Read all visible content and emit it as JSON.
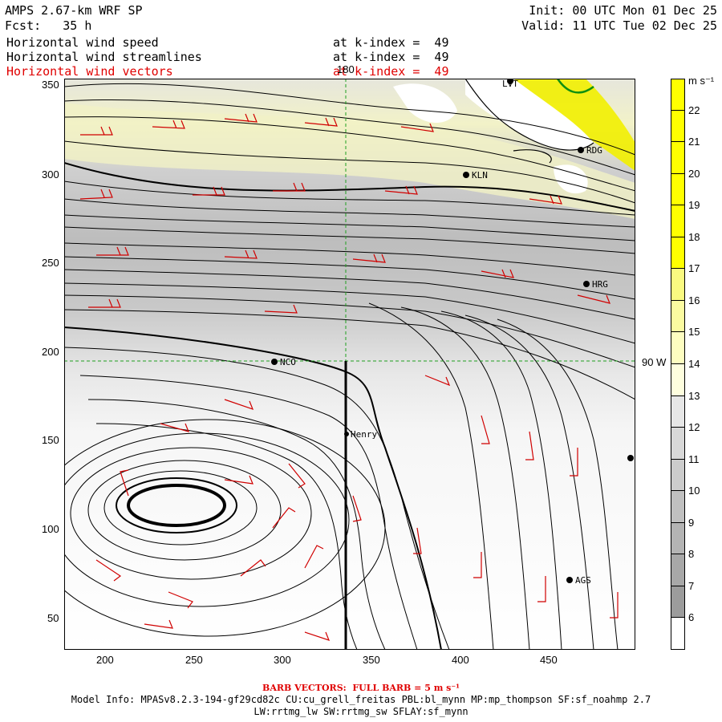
{
  "header": {
    "model": "AMPS 2.67-km WRF SP",
    "forecast": "Fcst:   35 h",
    "init": "Init: 00 UTC Mon 01 Dec 25",
    "valid": "Valid: 11 UTC Tue 02 Dec 25",
    "fields": [
      {
        "label": "Horizontal wind speed",
        "level": "at k-index =  49",
        "color": "#000000"
      },
      {
        "label": "Horizontal wind streamlines",
        "level": "at k-index =  49",
        "color": "#000000"
      },
      {
        "label": "Horizontal wind vectors",
        "level": "at k-index =  49",
        "color": "#e00000"
      }
    ]
  },
  "map": {
    "x_ticks": [
      "200",
      "250",
      "300",
      "350",
      "400",
      "450"
    ],
    "y_ticks": [
      "350",
      "300",
      "250",
      "200",
      "150",
      "100",
      "50"
    ],
    "meridian_label": "180",
    "parallel_label": "90 W",
    "stations": [
      {
        "name": "LVT"
      },
      {
        "name": "RDG"
      },
      {
        "name": "KLN"
      },
      {
        "name": "HRG"
      },
      {
        "name": "NCO"
      },
      {
        "name": "Henry"
      },
      {
        "name": "AGS"
      }
    ]
  },
  "colorbar": {
    "units": "m s⁻¹",
    "labels": [
      "22",
      "21",
      "20",
      "19",
      "18",
      "17",
      "16",
      "15",
      "14",
      "13",
      "12",
      "11",
      "10",
      "9",
      "8",
      "7",
      "6"
    ],
    "colors": [
      "#ffff00",
      "#ffff00",
      "#ffff00",
      "#ffff00",
      "#ffff00",
      "#fafa80",
      "#fbfba0",
      "#fdfdc0",
      "#fefede",
      "#e6e6e6",
      "#d8d8d8",
      "#cccccc",
      "#c0c0c0",
      "#b4b4b4",
      "#a8a8a8",
      "#9c9c9c",
      "#ffffff"
    ]
  },
  "footer": {
    "barb": "BARB VECTORS:  FULL BARB = 5 m s⁻¹",
    "model_info": "Model Info: MPASv8.2.3-194-gf29cd82c CU:cu_grell_freitas PBL:bl_mynn MP:mp_thompson SF:sf_noahmp 2.7",
    "physics": "LW:rrtmg_lw SW:rrtmg_sw SFLAY:sf_mynn"
  }
}
